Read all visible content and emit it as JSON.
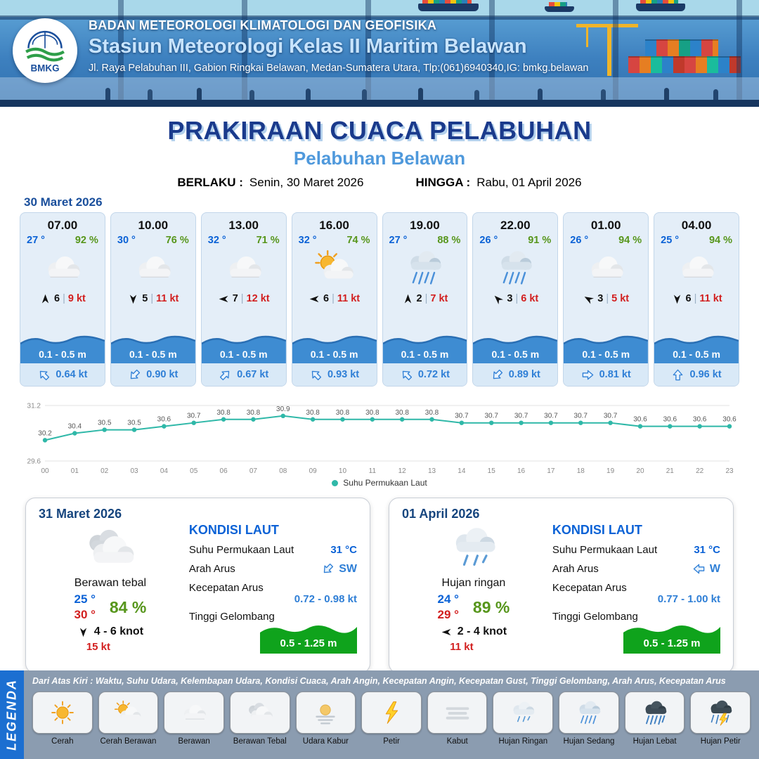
{
  "ui": {
    "wind_separator": "|"
  },
  "header": {
    "logo": "BMKG",
    "agency": "BADAN METEOROLOGI KLIMATOLOGI DAN GEOFISIKA",
    "station": "Stasiun Meteorologi Kelas II Maritim Belawan",
    "address": "Jl. Raya Pelabuhan III, Gabion Ringkai Belawan, Medan-Sumatera Utara, Tlp:(061)6940340,IG: bmkg.belawan"
  },
  "title": {
    "main": "PRAKIRAAN CUACA PELABUHAN",
    "sub": "Pelabuhan Belawan",
    "berlaku_label": "BERLAKU :",
    "berlaku_value": "Senin, 30 Maret 2026",
    "hingga_label": "HINGGA :",
    "hingga_value": "Rabu, 01 April 2026"
  },
  "forecast_date": "30 Maret 2026",
  "forecast_cards": [
    {
      "time": "07.00",
      "temp": "27 °",
      "humidity": "92 %",
      "icon": "berawan",
      "wind_deg": 0,
      "wind_speed": "6",
      "gust": "9 kt",
      "wave": "0.1 - 0.5 m",
      "current_deg": 315,
      "current_speed": "0.64 kt"
    },
    {
      "time": "10.00",
      "temp": "30 °",
      "humidity": "76 %",
      "icon": "berawan",
      "wind_deg": 180,
      "wind_speed": "5",
      "gust": "11 kt",
      "wave": "0.1 - 0.5 m",
      "current_deg": 225,
      "current_speed": "0.90 kt"
    },
    {
      "time": "13.00",
      "temp": "32 °",
      "humidity": "71 %",
      "icon": "berawan",
      "wind_deg": 270,
      "wind_speed": "7",
      "gust": "12 kt",
      "wave": "0.1 - 0.5 m",
      "current_deg": 45,
      "current_speed": "0.67 kt"
    },
    {
      "time": "16.00",
      "temp": "32 °",
      "humidity": "74 %",
      "icon": "cerah-berawan",
      "wind_deg": 270,
      "wind_speed": "6",
      "gust": "11 kt",
      "wave": "0.1 - 0.5 m",
      "current_deg": 315,
      "current_speed": "0.93 kt"
    },
    {
      "time": "19.00",
      "temp": "27 °",
      "humidity": "88 %",
      "icon": "hujan-sedang",
      "wind_deg": 0,
      "wind_speed": "2",
      "gust": "7 kt",
      "wave": "0.1 - 0.5 m",
      "current_deg": 315,
      "current_speed": "0.72 kt"
    },
    {
      "time": "22.00",
      "temp": "26 °",
      "humidity": "91 %",
      "icon": "hujan-sedang",
      "wind_deg": 315,
      "wind_speed": "3",
      "gust": "6 kt",
      "wave": "0.1 - 0.5 m",
      "current_deg": 225,
      "current_speed": "0.89 kt"
    },
    {
      "time": "01.00",
      "temp": "26 °",
      "humidity": "94 %",
      "icon": "berawan",
      "wind_deg": 300,
      "wind_speed": "3",
      "gust": "5 kt",
      "wave": "0.1 - 0.5 m",
      "current_deg": 90,
      "current_speed": "0.81 kt"
    },
    {
      "time": "04.00",
      "temp": "25 °",
      "humidity": "94 %",
      "icon": "berawan",
      "wind_deg": 180,
      "wind_speed": "6",
      "gust": "11 kt",
      "wave": "0.1 - 0.5 m",
      "current_deg": 0,
      "current_speed": "0.96 kt"
    }
  ],
  "chart_data": {
    "type": "line",
    "series_name": "Suhu Permukaan Laut",
    "x": [
      "00",
      "01",
      "02",
      "03",
      "04",
      "05",
      "06",
      "07",
      "08",
      "09",
      "10",
      "11",
      "12",
      "13",
      "14",
      "15",
      "16",
      "17",
      "18",
      "19",
      "20",
      "21",
      "22",
      "23"
    ],
    "values": [
      30.2,
      30.4,
      30.5,
      30.5,
      30.6,
      30.7,
      30.8,
      30.8,
      30.9,
      30.8,
      30.8,
      30.8,
      30.8,
      30.8,
      30.7,
      30.7,
      30.7,
      30.7,
      30.7,
      30.7,
      30.6,
      30.6,
      30.6,
      30.6
    ],
    "ylim": [
      29.6,
      31.2
    ],
    "line_color": "#2fb8a8",
    "legend_position": "bottom",
    "grid": true
  },
  "day_cards": [
    {
      "date": "31 Maret 2026",
      "icon": "berawan-tebal",
      "condition": "Berawan tebal",
      "temp_min": "25 °",
      "temp_max": "30 °",
      "humidity": "84 %",
      "wind_deg": 180,
      "wind_range": "4 - 6 knot",
      "gust": "15 kt",
      "sea": {
        "title": "KONDISI LAUT",
        "sst_label": "Suhu Permukaan Laut",
        "sst": "31 °C",
        "current_dir_label": "Arah Arus",
        "current_dir": "SW",
        "current_deg": 225,
        "current_speed_label": "Kecepatan Arus",
        "current_speed": "0.72 - 0.98 kt",
        "wave_label": "Tinggi Gelombang",
        "wave": "0.5 - 1.25 m"
      }
    },
    {
      "date": "01 April 2026",
      "icon": "hujan-ringan",
      "condition": "Hujan ringan",
      "temp_min": "24 °",
      "temp_max": "29 °",
      "humidity": "89 %",
      "wind_deg": 270,
      "wind_range": "2 - 4 knot",
      "gust": "11 kt",
      "sea": {
        "title": "KONDISI LAUT",
        "sst_label": "Suhu Permukaan Laut",
        "sst": "31 °C",
        "current_dir_label": "Arah Arus",
        "current_dir": "W",
        "current_deg": 270,
        "current_speed_label": "Kecepatan Arus",
        "current_speed": "0.77 - 1.00 kt",
        "wave_label": "Tinggi Gelombang",
        "wave": "0.5 - 1.25 m"
      }
    }
  ],
  "legend": {
    "title": "LEGENDA",
    "description": "Dari Atas Kiri : Waktu, Suhu Udara, Kelembapan Udara, Kondisi Cuaca, Arah Angin, Kecepatan Angin, Kecepatan Gust, Tinggi Gelombang, Arah Arus, Kecepatan Arus",
    "items": [
      {
        "label": "Cerah",
        "icon": "cerah"
      },
      {
        "label": "Cerah Berawan",
        "icon": "cerah-berawan"
      },
      {
        "label": "Berawan",
        "icon": "berawan"
      },
      {
        "label": "Berawan Tebal",
        "icon": "berawan-tebal"
      },
      {
        "label": "Udara Kabur",
        "icon": "udara-kabur"
      },
      {
        "label": "Petir",
        "icon": "petir"
      },
      {
        "label": "Kabut",
        "icon": "kabut"
      },
      {
        "label": "Hujan Ringan",
        "icon": "hujan-ringan"
      },
      {
        "label": "Hujan Sedang",
        "icon": "hujan-sedang"
      },
      {
        "label": "Hujan Lebat",
        "icon": "hujan-lebat"
      },
      {
        "label": "Hujan Petir",
        "icon": "hujan-petir"
      }
    ]
  },
  "colors": {
    "temp_blue": "#0b62d6",
    "humidity_green": "#57961c",
    "gust_red": "#d21f1f",
    "title_blue": "#1a3a8c",
    "sub_blue": "#4f99dc",
    "wave_band_blue": "#3e8cd2",
    "wave_green": "#0fa31c",
    "chart_line": "#2fb8a8"
  }
}
